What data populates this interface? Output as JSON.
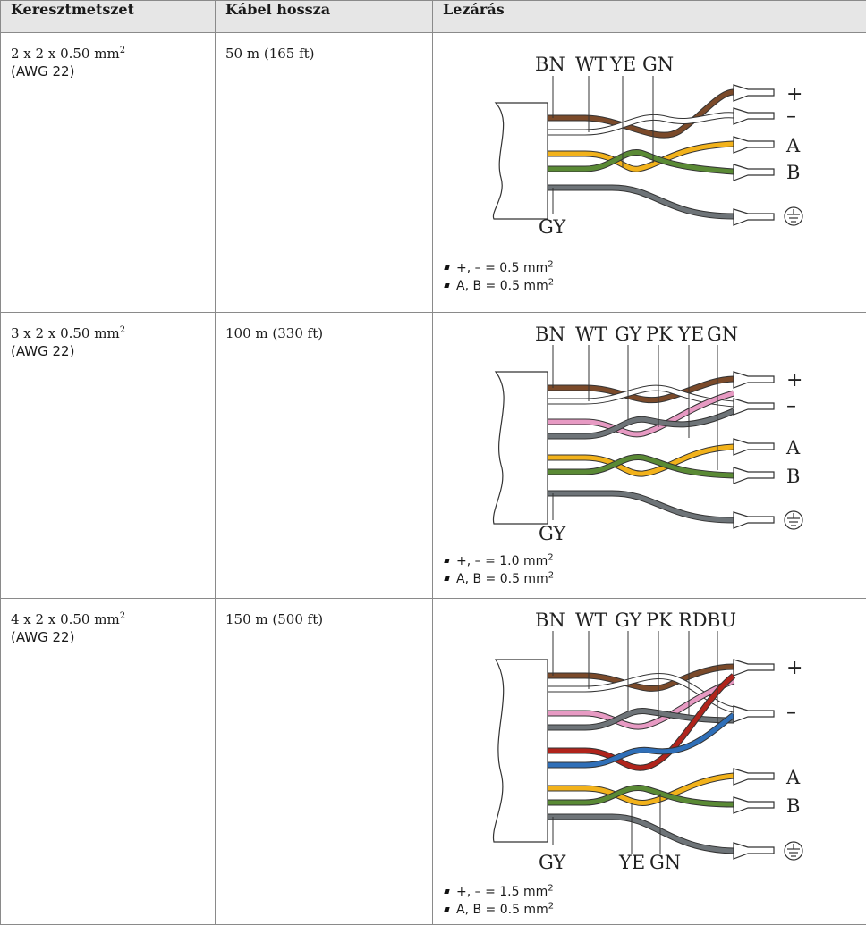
{
  "headers": [
    "Keresztmetszet",
    "Kábel hossza",
    "Lezárás"
  ],
  "rows": [
    {
      "cross_section": "2 x 2 x 0.50 mm",
      "cross_section_sup": "2",
      "awg": "(AWG 22)",
      "length": "50 m (165 ft)",
      "diagram": {
        "top_labels": [
          "BN",
          "WT",
          "YE",
          "GN"
        ],
        "bottom_labels": [
          "GY"
        ],
        "terminal_symbols": [
          "+",
          "–",
          "A",
          "B",
          "ground-symbol"
        ]
      },
      "notes": [
        {
          "text": "+, – = 0.5 mm",
          "sup": "2"
        },
        {
          "text": "A, B = 0.5 mm",
          "sup": "2"
        }
      ]
    },
    {
      "cross_section": "3 x 2 x 0.50 mm",
      "cross_section_sup": "2",
      "awg": "(AWG 22)",
      "length": "100 m (330 ft)",
      "diagram": {
        "top_labels": [
          "BN",
          "WT",
          "GY",
          "PK",
          "YE",
          "GN"
        ],
        "bottom_labels": [
          "GY"
        ],
        "terminal_symbols": [
          "+",
          "–",
          "A",
          "B",
          "ground-symbol"
        ]
      },
      "notes": [
        {
          "text": "+, – = 1.0 mm",
          "sup": "2"
        },
        {
          "text": "A, B = 0.5 mm",
          "sup": "2"
        }
      ]
    },
    {
      "cross_section": "4 x 2 x 0.50 mm",
      "cross_section_sup": "2",
      "awg": "(AWG 22)",
      "length": "150 m (500 ft)",
      "diagram": {
        "top_labels": [
          "BN",
          "WT",
          "GY",
          "PK",
          "RD",
          "BU"
        ],
        "bottom_labels": [
          "GY",
          "YE",
          "GN"
        ],
        "terminal_symbols": [
          "+",
          "–",
          "A",
          "B",
          "ground-symbol"
        ]
      },
      "notes": [
        {
          "text": "+, – = 1.5 mm",
          "sup": "2"
        },
        {
          "text": "A, B = 0.5 mm",
          "sup": "2"
        }
      ]
    }
  ],
  "wire_colors": {
    "BN": "#7b4a2a",
    "WT": "#ffffff",
    "YE": "#f2b21b",
    "GN": "#5a8a35",
    "GY": "#6e7478",
    "PK": "#e79ac3",
    "RD": "#b0241c",
    "BU": "#2f6fb8"
  }
}
